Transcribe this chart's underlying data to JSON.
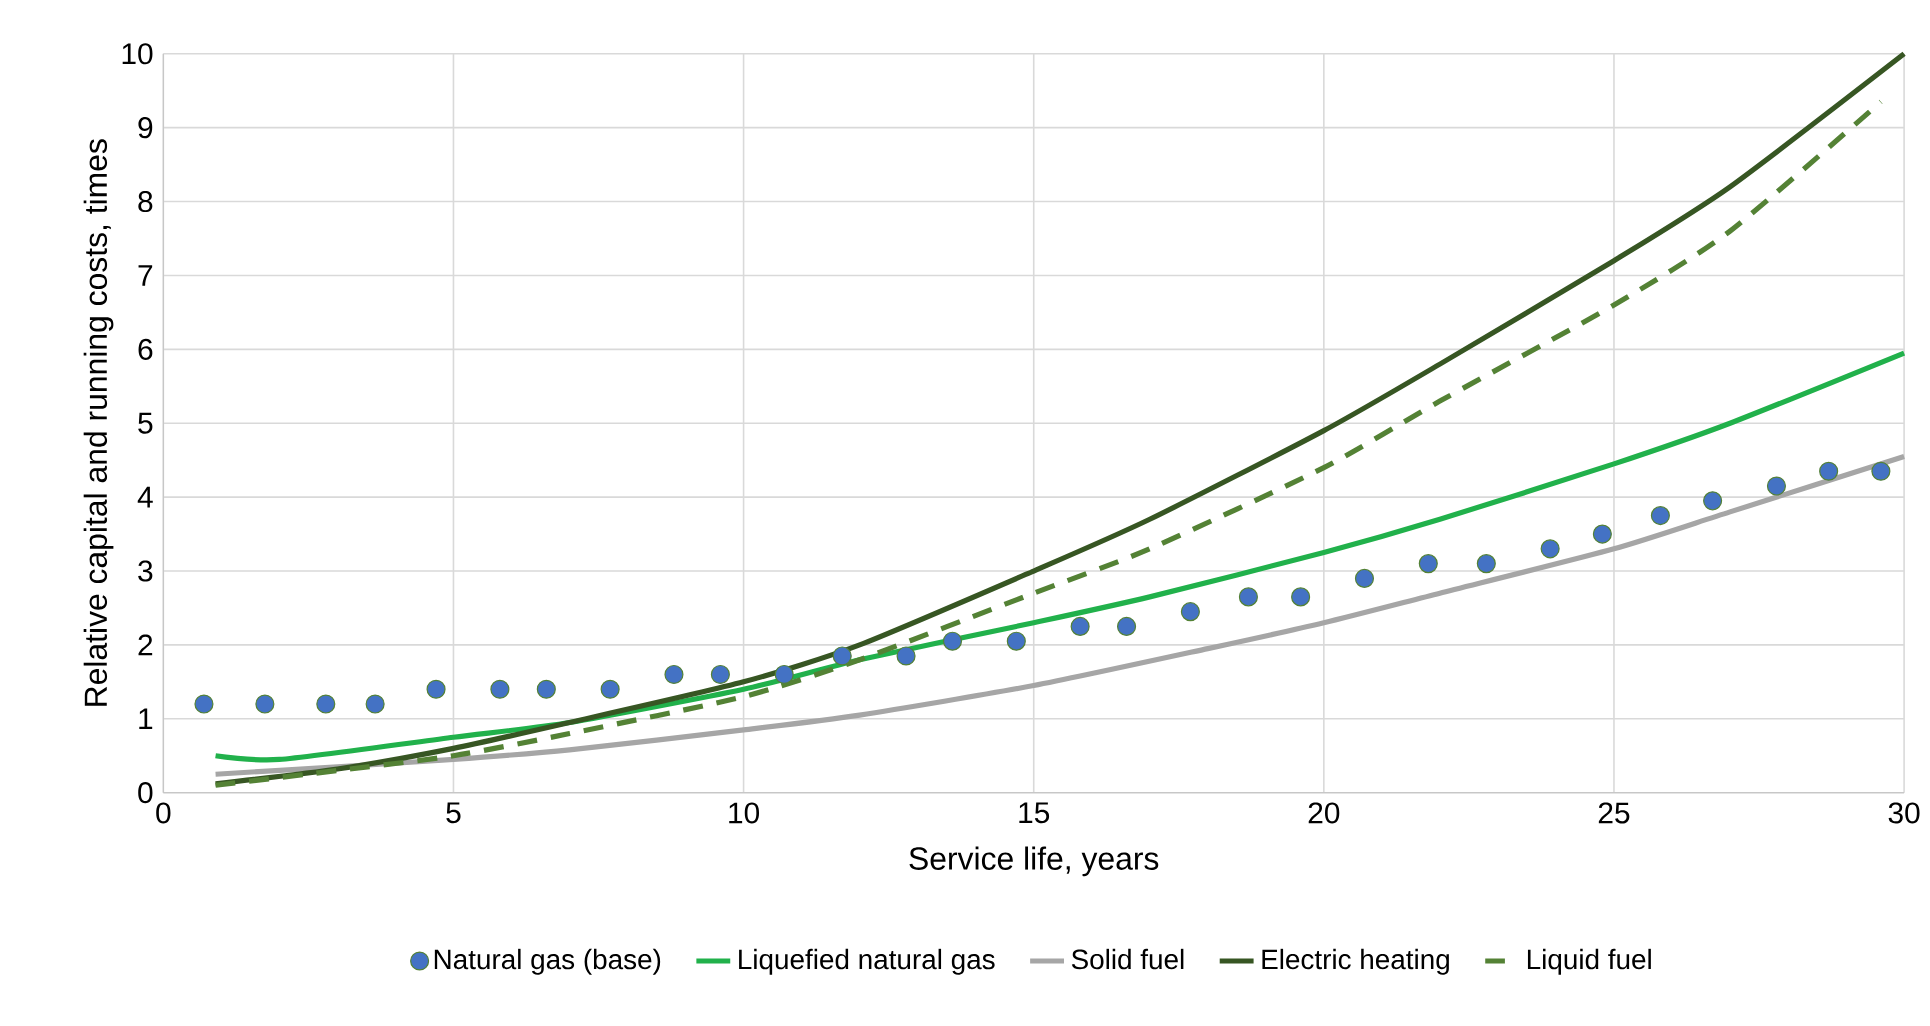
{
  "chart_data": {
    "type": "line",
    "xlabel": "Service life, years",
    "ylabel": "Relative capital and running costs, times",
    "xlim": [
      0,
      30
    ],
    "ylim": [
      0,
      10
    ],
    "xticks": [
      0,
      5,
      10,
      15,
      20,
      25,
      30
    ],
    "yticks": [
      0,
      1,
      2,
      3,
      4,
      5,
      6,
      7,
      8,
      9,
      10
    ],
    "grid": true,
    "legend": "bottom",
    "series": [
      {
        "name": "Natural gas (base)",
        "type": "scatter",
        "color": "#4472c4",
        "x": [
          0.7,
          1.75,
          2.8,
          3.65,
          4.7,
          5.8,
          6.6,
          7.7,
          8.8,
          9.6,
          10.7,
          11.7,
          12.8,
          13.6,
          14.7,
          15.8,
          16.6,
          17.7,
          18.7,
          19.6,
          20.7,
          21.8,
          22.8,
          23.9,
          24.8,
          25.8,
          26.7,
          27.8,
          28.7,
          29.6
        ],
        "values": [
          1.2,
          1.2,
          1.2,
          1.2,
          1.4,
          1.4,
          1.4,
          1.4,
          1.6,
          1.6,
          1.6,
          1.85,
          1.85,
          2.05,
          2.05,
          2.25,
          2.25,
          2.45,
          2.65,
          2.65,
          2.9,
          3.1,
          3.1,
          3.3,
          3.5,
          3.75,
          3.95,
          4.15,
          4.35,
          4.35
        ]
      },
      {
        "name": "Liquefied natural gas",
        "line_style": "solid",
        "color": "#21b14b",
        "x": [
          0.9,
          2,
          5,
          7,
          10,
          12,
          15,
          17,
          20,
          22,
          25,
          27,
          30
        ],
        "values": [
          0.5,
          0.45,
          0.75,
          0.95,
          1.4,
          1.8,
          2.3,
          2.65,
          3.25,
          3.7,
          4.45,
          5.0,
          5.95
        ]
      },
      {
        "name": "Solid fuel",
        "line_style": "solid",
        "color": "#a6a6a6",
        "x": [
          0.9,
          3,
          5,
          7,
          10,
          12,
          15,
          18,
          20,
          22,
          25,
          27,
          30
        ],
        "values": [
          0.25,
          0.35,
          0.45,
          0.58,
          0.85,
          1.05,
          1.45,
          1.95,
          2.3,
          2.7,
          3.3,
          3.8,
          4.55
        ]
      },
      {
        "name": "Electric heating",
        "line_style": "solid",
        "color": "#375623",
        "x": [
          0.9,
          3,
          5,
          7,
          10,
          12,
          15,
          17,
          20,
          22,
          25,
          27,
          30
        ],
        "values": [
          0.12,
          0.32,
          0.6,
          0.95,
          1.5,
          2.0,
          3.0,
          3.7,
          4.9,
          5.8,
          7.2,
          8.2,
          10
        ]
      },
      {
        "name": "Liquid fuel",
        "line_style": "dashed",
        "color": "#548235",
        "x": [
          0.9,
          3,
          5,
          7,
          10,
          12,
          15,
          17,
          20,
          22,
          25,
          27,
          29.6
        ],
        "values": [
          0.1,
          0.3,
          0.5,
          0.8,
          1.3,
          1.8,
          2.7,
          3.3,
          4.4,
          5.3,
          6.6,
          7.6,
          9.35
        ]
      }
    ]
  }
}
